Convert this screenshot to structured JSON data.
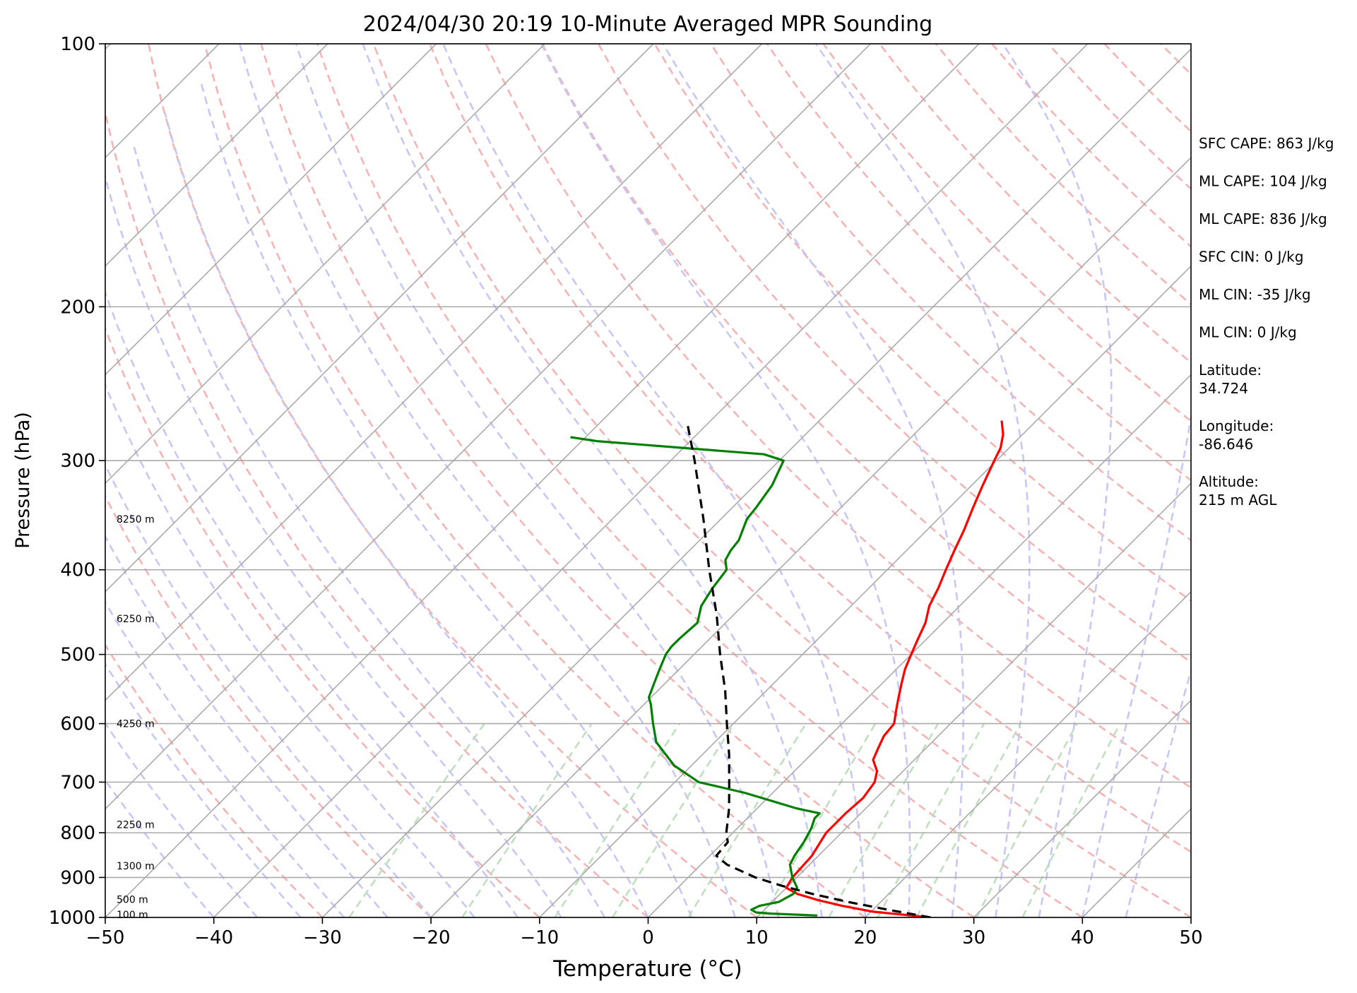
{
  "chart_data": {
    "type": "line",
    "title": "2024/04/30 20:19 10-Minute Averaged MPR Sounding",
    "xlabel": "Temperature (°C)",
    "ylabel": "Pressure (hPa)",
    "x_axis": {
      "min": -50,
      "max": 50,
      "ticks": [
        -50,
        -40,
        -30,
        -20,
        -10,
        0,
        10,
        20,
        30,
        40,
        50
      ],
      "tick_labels": [
        "−50",
        "−40",
        "−30",
        "−20",
        "−10",
        "0",
        "10",
        "20",
        "30",
        "40",
        "50"
      ]
    },
    "y_axis": {
      "scale": "log",
      "min": 100,
      "max": 1000,
      "ticks": [
        100,
        200,
        300,
        400,
        500,
        600,
        700,
        800,
        900,
        1000
      ],
      "tick_labels": [
        "100",
        "200",
        "300",
        "400",
        "500",
        "600",
        "700",
        "800",
        "900",
        "1000"
      ],
      "inverted": true
    },
    "skew_description": "skew-T log-p diagram",
    "grid": true,
    "series": [
      {
        "role": "temperature",
        "color": "#ff0000",
        "points": [
          [
            1000,
            26.0
          ],
          [
            985,
            20.2
          ],
          [
            970,
            16.8
          ],
          [
            955,
            14.0
          ],
          [
            940,
            11.6
          ],
          [
            925,
            10.0
          ],
          [
            900,
            9.6
          ],
          [
            850,
            9.4
          ],
          [
            800,
            8.6
          ],
          [
            760,
            8.6
          ],
          [
            730,
            8.8
          ],
          [
            700,
            8.4
          ],
          [
            680,
            7.6
          ],
          [
            660,
            6.2
          ],
          [
            640,
            5.6
          ],
          [
            620,
            5.0
          ],
          [
            600,
            4.8
          ],
          [
            580,
            3.8
          ],
          [
            560,
            2.8
          ],
          [
            540,
            1.8
          ],
          [
            520,
            0.8
          ],
          [
            500,
            0.0
          ],
          [
            480,
            -0.8
          ],
          [
            460,
            -1.6
          ],
          [
            440,
            -2.8
          ],
          [
            420,
            -3.6
          ],
          [
            400,
            -4.6
          ],
          [
            380,
            -5.6
          ],
          [
            360,
            -6.6
          ],
          [
            340,
            -7.8
          ],
          [
            320,
            -9.0
          ],
          [
            300,
            -10.2
          ],
          [
            290,
            -10.8
          ],
          [
            280,
            -11.8
          ],
          [
            270,
            -13.2
          ]
        ]
      },
      {
        "role": "dewpoint",
        "color": "#008000",
        "points": [
          [
            995,
            15.4
          ],
          [
            990,
            11.0
          ],
          [
            987,
            9.5
          ],
          [
            980,
            8.8
          ],
          [
            970,
            9.2
          ],
          [
            960,
            10.6
          ],
          [
            940,
            11.2
          ],
          [
            925,
            11.0
          ],
          [
            900,
            9.6
          ],
          [
            870,
            8.2
          ],
          [
            850,
            7.8
          ],
          [
            820,
            7.4
          ],
          [
            790,
            6.8
          ],
          [
            770,
            6.2
          ],
          [
            760,
            6.2
          ],
          [
            750,
            3.6
          ],
          [
            720,
            -2.6
          ],
          [
            700,
            -7.8
          ],
          [
            670,
            -11.6
          ],
          [
            630,
            -15.4
          ],
          [
            600,
            -17.4
          ],
          [
            570,
            -19.4
          ],
          [
            560,
            -20.2
          ],
          [
            540,
            -21.0
          ],
          [
            520,
            -21.8
          ],
          [
            500,
            -22.6
          ],
          [
            490,
            -22.8
          ],
          [
            480,
            -22.8
          ],
          [
            460,
            -22.6
          ],
          [
            440,
            -23.8
          ],
          [
            420,
            -24.4
          ],
          [
            400,
            -24.8
          ],
          [
            390,
            -25.8
          ],
          [
            380,
            -26.2
          ],
          [
            370,
            -26.4
          ],
          [
            350,
            -27.6
          ],
          [
            340,
            -27.8
          ],
          [
            320,
            -28.4
          ],
          [
            310,
            -29.0
          ],
          [
            300,
            -29.6
          ],
          [
            295,
            -32.0
          ],
          [
            290,
            -40.2
          ],
          [
            285,
            -48.6
          ],
          [
            282,
            -51.4
          ]
        ]
      },
      {
        "role": "parcel",
        "color": "#000000",
        "points": [
          [
            1000,
            26.0
          ],
          [
            980,
            21.4
          ],
          [
            960,
            17.0
          ],
          [
            940,
            13.0
          ],
          [
            920,
            9.4
          ],
          [
            900,
            6.2
          ],
          [
            870,
            2.4
          ],
          [
            850,
            0.6
          ],
          [
            820,
            0.4
          ],
          [
            800,
            -0.6
          ],
          [
            750,
            -2.6
          ],
          [
            700,
            -5.0
          ],
          [
            650,
            -7.6
          ],
          [
            600,
            -10.6
          ],
          [
            550,
            -13.8
          ],
          [
            500,
            -17.6
          ],
          [
            450,
            -21.6
          ],
          [
            400,
            -26.4
          ],
          [
            350,
            -31.6
          ],
          [
            300,
            -37.8
          ],
          [
            270,
            -42.2
          ]
        ]
      }
    ],
    "height_labels": [
      {
        "label": "8250 m",
        "p": 350
      },
      {
        "label": "6250 m",
        "p": 455
      },
      {
        "label": "4250 m",
        "p": 600
      },
      {
        "label": "2250 m",
        "p": 783
      },
      {
        "label": "1300 m",
        "p": 873
      },
      {
        "label": "500 m",
        "p": 954
      },
      {
        "label": "100 m",
        "p": 993
      }
    ],
    "annotations": [
      "SFC CAPE: 863 J/kg",
      "ML CAPE: 104 J/kg",
      "ML CAPE: 836 J/kg",
      "SFC CIN: 0 J/kg",
      "ML CIN: -35 J/kg",
      "ML CIN: 0 J/kg",
      [
        "Latitude:",
        "34.724"
      ],
      [
        "Longitude:",
        "-86.646"
      ],
      [
        "Altitude:",
        "215 m AGL"
      ]
    ]
  }
}
